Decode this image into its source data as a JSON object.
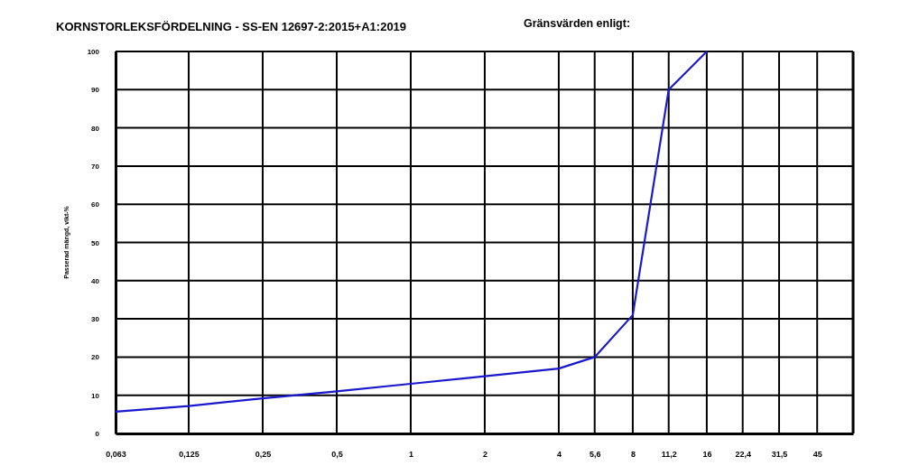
{
  "chart_data": {
    "type": "line",
    "title": "KORNSTORLEKSFÖRDELNING - SS-EN 12697-2:2015+A1:2019",
    "annotations": [
      "Gränsvärden enligt:"
    ],
    "ylabel": "Passerad mängd, vikt-%",
    "log": "x",
    "x": [
      0.063,
      0.125,
      0.25,
      0.5,
      1,
      2,
      4,
      5.6,
      8,
      11.2,
      16
    ],
    "series": [
      {
        "color": "#1a1acc",
        "values": [
          5.7,
          7.2,
          9.2,
          11,
          13,
          15,
          17,
          20,
          31,
          90,
          100
        ]
      }
    ],
    "xlim": [
      0.063,
      63
    ],
    "xticks": [
      {
        "value": 0.063,
        "label": "0,063"
      },
      {
        "value": 0.125,
        "label": "0,125"
      },
      {
        "value": 0.25,
        "label": "0,25"
      },
      {
        "value": 0.5,
        "label": "0,5"
      },
      1,
      2,
      4,
      {
        "value": 5.6,
        "label": "5,6"
      },
      8,
      {
        "value": 11.2,
        "label": "11,2"
      },
      16,
      {
        "value": 22.4,
        "label": "22,4"
      },
      {
        "value": 31.5,
        "label": "31,5"
      },
      45
    ],
    "ylim": [
      0,
      100
    ],
    "yticks": [
      0,
      10,
      20,
      30,
      40,
      50,
      60,
      70,
      80,
      90,
      100
    ],
    "grid": true,
    "marker": "none",
    "line_style": "solid"
  }
}
